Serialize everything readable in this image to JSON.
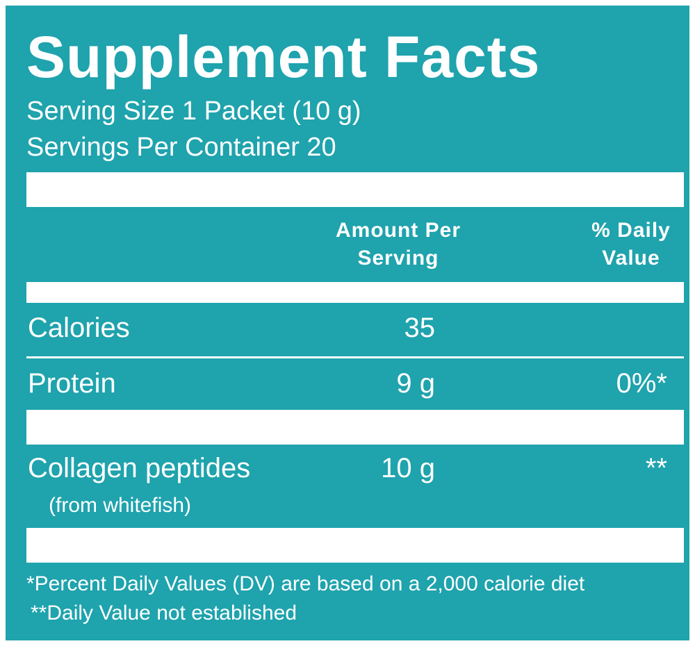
{
  "label": {
    "title": "Supplement Facts",
    "serving_size": "Serving Size 1 Packet (10 g)",
    "servings_per_container": "Servings Per Container 20",
    "columns": {
      "amount_line1": "Amount Per",
      "amount_line2": "Serving",
      "dv_line1": "% Daily",
      "dv_line2": "Value"
    },
    "rows": [
      {
        "name": "Calories",
        "amount": "35",
        "dv": ""
      },
      {
        "name": "Protein",
        "amount": "9 g",
        "dv": "0%*"
      },
      {
        "name": "Collagen peptides",
        "sub": "(from whitefish)",
        "amount": "10 g",
        "dv": "**"
      }
    ],
    "footnotes": [
      "*Percent Daily Values (DV) are based on a 2,000 calorie diet",
      "**Daily Value not established"
    ],
    "colors": {
      "background": "#1fa3ad",
      "foreground": "#ffffff"
    }
  }
}
